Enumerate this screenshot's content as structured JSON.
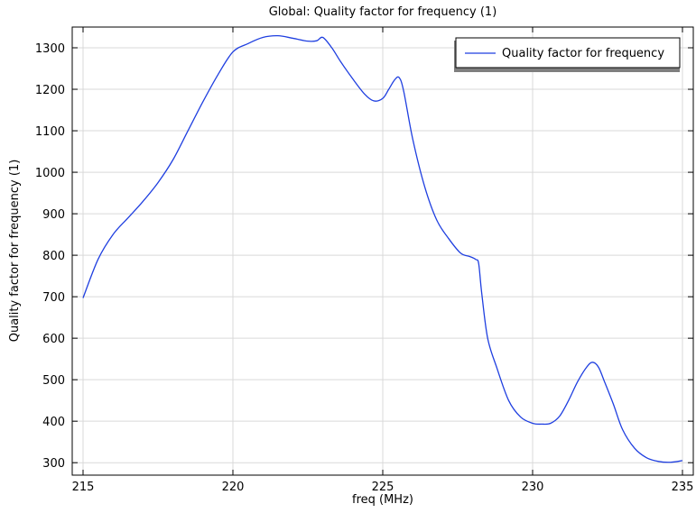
{
  "chart_data": {
    "type": "line",
    "title": "Global: Quality factor for frequency (1)",
    "xlabel": "freq (MHz)",
    "ylabel": "Quality factor for frequency (1)",
    "xlim": [
      215,
      235
    ],
    "ylim": [
      270,
      1350
    ],
    "xticks": [
      215,
      220,
      225,
      230,
      235
    ],
    "yticks": [
      300,
      400,
      500,
      600,
      700,
      800,
      900,
      1000,
      1100,
      1200,
      1300
    ],
    "grid": true,
    "legend": {
      "position": "top-right"
    },
    "series": [
      {
        "name": "Quality factor for frequency",
        "color": "#1f3fe0",
        "x": [
          215.0,
          215.5,
          216.0,
          216.5,
          217.0,
          217.5,
          218.0,
          218.5,
          219.0,
          219.5,
          220.0,
          220.5,
          221.0,
          221.5,
          222.0,
          222.5,
          222.8,
          223.0,
          223.3,
          223.6,
          224.0,
          224.4,
          224.7,
          225.0,
          225.2,
          225.4,
          225.55,
          225.7,
          226.0,
          226.4,
          226.8,
          227.2,
          227.6,
          227.9,
          228.1,
          228.2,
          228.3,
          228.5,
          228.8,
          229.2,
          229.6,
          230.0,
          230.3,
          230.6,
          230.9,
          231.2,
          231.5,
          231.8,
          232.0,
          232.2,
          232.4,
          232.7,
          233.0,
          233.4,
          233.8,
          234.2,
          234.6,
          235.0
        ],
        "y": [
          697,
          790,
          850,
          890,
          930,
          975,
          1030,
          1100,
          1170,
          1235,
          1290,
          1310,
          1325,
          1329,
          1323,
          1316,
          1317,
          1325,
          1300,
          1266,
          1225,
          1188,
          1172,
          1178,
          1200,
          1223,
          1228,
          1195,
          1080,
          965,
          885,
          840,
          805,
          797,
          790,
          780,
          710,
          600,
          530,
          450,
          410,
          395,
          393,
          395,
          412,
          450,
          495,
          530,
          542,
          530,
          495,
          440,
          380,
          335,
          312,
          303,
          301,
          305
        ]
      }
    ]
  }
}
